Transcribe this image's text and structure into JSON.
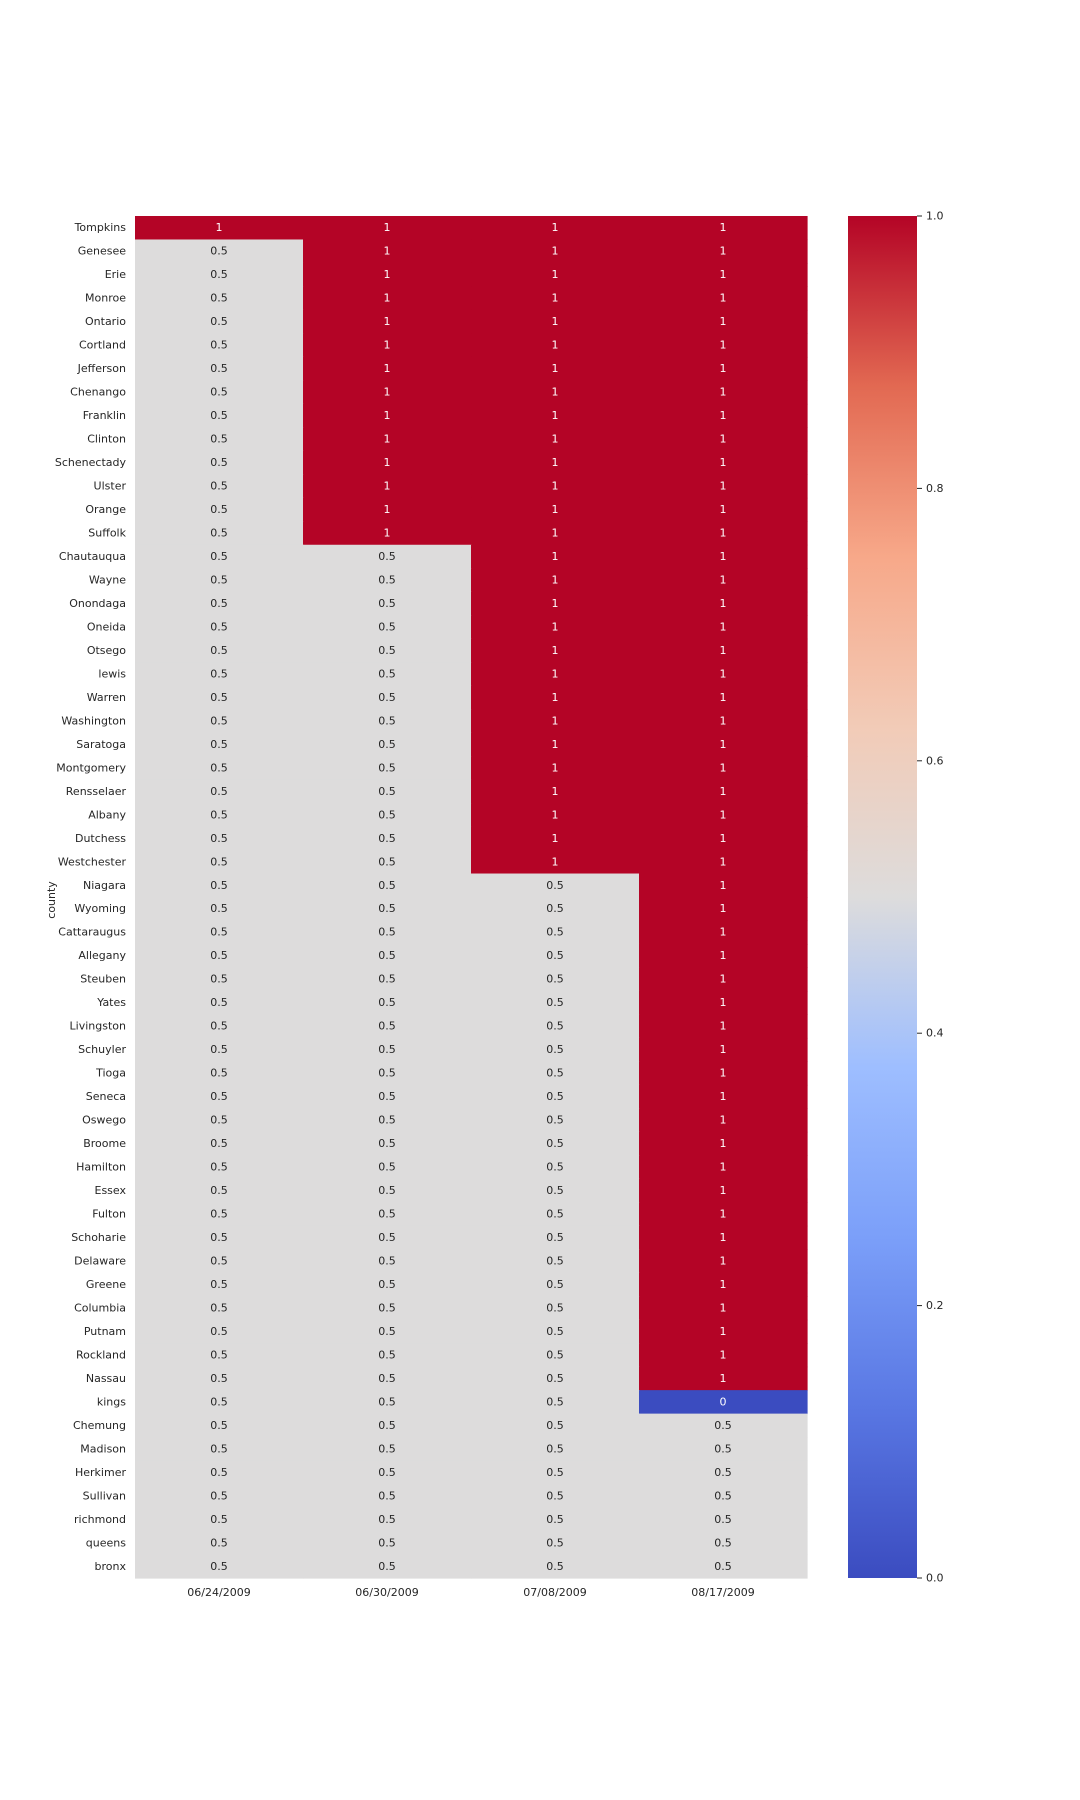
{
  "chart_data": {
    "type": "heatmap",
    "title": "",
    "xlabel": "",
    "ylabel": "county",
    "colormap": "coolwarm",
    "vmin": 0,
    "vmax": 1,
    "x_categories": [
      "06/24/2009",
      "06/30/2009",
      "07/08/2009",
      "08/17/2009"
    ],
    "y_categories": [
      "Tompkins",
      "Genesee",
      "Erie",
      "Monroe",
      "Ontario",
      "Cortland",
      "Jefferson",
      "Chenango",
      "Franklin",
      "Clinton",
      "Schenectady",
      "Ulster",
      "Orange",
      "Suffolk",
      "Chautauqua",
      "Wayne",
      "Onondaga",
      "Oneida",
      "Otsego",
      "lewis",
      "Warren",
      "Washington",
      "Saratoga",
      "Montgomery",
      "Rensselaer",
      "Albany",
      "Dutchess",
      "Westchester",
      "Niagara",
      "Wyoming",
      "Cattaraugus",
      "Allegany",
      "Steuben",
      "Yates",
      "Livingston",
      "Schuyler",
      "Tioga",
      "Seneca",
      "Oswego",
      "Broome",
      "Hamilton",
      "Essex",
      "Fulton",
      "Schoharie",
      "Delaware",
      "Greene",
      "Columbia",
      "Putnam",
      "Rockland",
      "Nassau",
      "kings",
      "Chemung",
      "Madison",
      "Herkimer",
      "Sullivan",
      "richmond",
      "queens",
      "bronx"
    ],
    "values": [
      [
        1,
        1,
        1,
        1
      ],
      [
        0.5,
        1,
        1,
        1
      ],
      [
        0.5,
        1,
        1,
        1
      ],
      [
        0.5,
        1,
        1,
        1
      ],
      [
        0.5,
        1,
        1,
        1
      ],
      [
        0.5,
        1,
        1,
        1
      ],
      [
        0.5,
        1,
        1,
        1
      ],
      [
        0.5,
        1,
        1,
        1
      ],
      [
        0.5,
        1,
        1,
        1
      ],
      [
        0.5,
        1,
        1,
        1
      ],
      [
        0.5,
        1,
        1,
        1
      ],
      [
        0.5,
        1,
        1,
        1
      ],
      [
        0.5,
        1,
        1,
        1
      ],
      [
        0.5,
        1,
        1,
        1
      ],
      [
        0.5,
        0.5,
        1,
        1
      ],
      [
        0.5,
        0.5,
        1,
        1
      ],
      [
        0.5,
        0.5,
        1,
        1
      ],
      [
        0.5,
        0.5,
        1,
        1
      ],
      [
        0.5,
        0.5,
        1,
        1
      ],
      [
        0.5,
        0.5,
        1,
        1
      ],
      [
        0.5,
        0.5,
        1,
        1
      ],
      [
        0.5,
        0.5,
        1,
        1
      ],
      [
        0.5,
        0.5,
        1,
        1
      ],
      [
        0.5,
        0.5,
        1,
        1
      ],
      [
        0.5,
        0.5,
        1,
        1
      ],
      [
        0.5,
        0.5,
        1,
        1
      ],
      [
        0.5,
        0.5,
        1,
        1
      ],
      [
        0.5,
        0.5,
        1,
        1
      ],
      [
        0.5,
        0.5,
        0.5,
        1
      ],
      [
        0.5,
        0.5,
        0.5,
        1
      ],
      [
        0.5,
        0.5,
        0.5,
        1
      ],
      [
        0.5,
        0.5,
        0.5,
        1
      ],
      [
        0.5,
        0.5,
        0.5,
        1
      ],
      [
        0.5,
        0.5,
        0.5,
        1
      ],
      [
        0.5,
        0.5,
        0.5,
        1
      ],
      [
        0.5,
        0.5,
        0.5,
        1
      ],
      [
        0.5,
        0.5,
        0.5,
        1
      ],
      [
        0.5,
        0.5,
        0.5,
        1
      ],
      [
        0.5,
        0.5,
        0.5,
        1
      ],
      [
        0.5,
        0.5,
        0.5,
        1
      ],
      [
        0.5,
        0.5,
        0.5,
        1
      ],
      [
        0.5,
        0.5,
        0.5,
        1
      ],
      [
        0.5,
        0.5,
        0.5,
        1
      ],
      [
        0.5,
        0.5,
        0.5,
        1
      ],
      [
        0.5,
        0.5,
        0.5,
        1
      ],
      [
        0.5,
        0.5,
        0.5,
        1
      ],
      [
        0.5,
        0.5,
        0.5,
        1
      ],
      [
        0.5,
        0.5,
        0.5,
        1
      ],
      [
        0.5,
        0.5,
        0.5,
        1
      ],
      [
        0.5,
        0.5,
        0.5,
        1
      ],
      [
        0.5,
        0.5,
        0.5,
        0
      ],
      [
        0.5,
        0.5,
        0.5,
        0.5
      ],
      [
        0.5,
        0.5,
        0.5,
        0.5
      ],
      [
        0.5,
        0.5,
        0.5,
        0.5
      ],
      [
        0.5,
        0.5,
        0.5,
        0.5
      ],
      [
        0.5,
        0.5,
        0.5,
        0.5
      ],
      [
        0.5,
        0.5,
        0.5,
        0.5
      ],
      [
        0.5,
        0.5,
        0.5,
        0.5
      ]
    ],
    "colorbar_ticks": [
      0.0,
      0.2,
      0.4,
      0.6,
      0.8,
      1.0
    ],
    "colorbar_tick_labels": [
      "0.0",
      "0.2",
      "0.4",
      "0.6",
      "0.8",
      "1.0"
    ],
    "grid": false,
    "legend": "colorbar-right"
  }
}
